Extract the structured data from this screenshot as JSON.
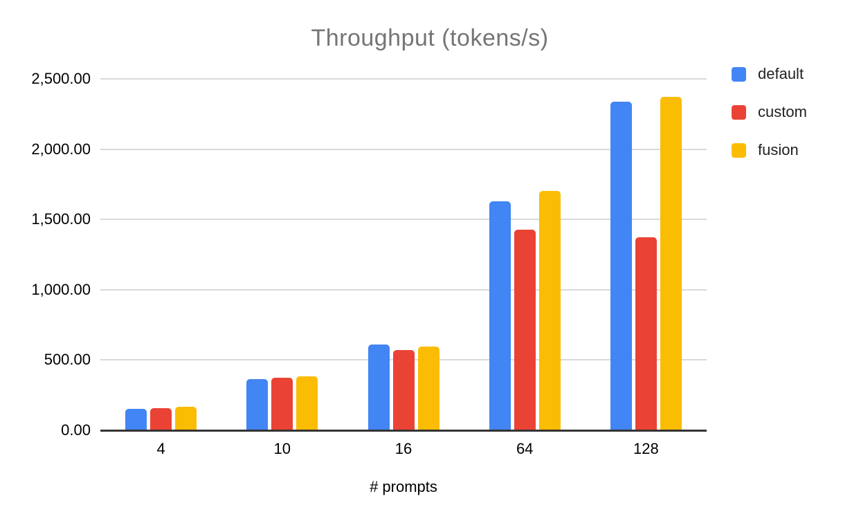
{
  "chart_data": {
    "type": "bar",
    "title": "Throughput (tokens/s)",
    "xlabel": "# prompts",
    "ylabel": "",
    "categories": [
      "4",
      "10",
      "16",
      "64",
      "128"
    ],
    "series": [
      {
        "name": "default",
        "color": "#4285F4",
        "values": [
          152,
          365,
          610,
          1630,
          2340
        ]
      },
      {
        "name": "custom",
        "color": "#EA4335",
        "values": [
          158,
          375,
          572,
          1425,
          1375
        ]
      },
      {
        "name": "fusion",
        "color": "#FBBC04",
        "values": [
          168,
          385,
          598,
          1705,
          2370
        ]
      }
    ],
    "ylim": [
      0,
      2500
    ],
    "y_ticks": [
      0,
      500,
      1000,
      1500,
      2000,
      2500
    ],
    "y_tick_labels": [
      "0.00",
      "500.00",
      "1,000.00",
      "1,500.00",
      "2,000.00",
      "2,500.00"
    ],
    "grid": true,
    "legend_position": "right"
  },
  "colors": {
    "title_text": "#757575",
    "gridline": "#d9d9d9",
    "axis_line": "#333333",
    "tick_text": "#000000"
  }
}
